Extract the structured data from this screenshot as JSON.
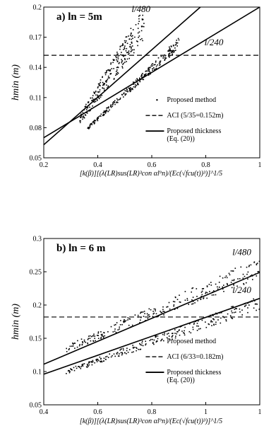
{
  "chart_data": [
    {
      "type": "scatter",
      "panel_label": "a) ln = 5m",
      "ylabel": "hmin (m)",
      "xlabel": "[k(β)][(λ(LR)sus(LR)³con αl⁹n)/(Ec(√fcu(t))³)]^1/5",
      "xlim": [
        0.2,
        1.0
      ],
      "ylim": [
        0.05,
        0.2
      ],
      "xticks": [
        "0.2",
        "0.4",
        "0.6",
        "0.8",
        "1"
      ],
      "yticks": [
        "0.05",
        "0.08",
        "0.11",
        "0.14",
        "0.17",
        "0.2"
      ],
      "annotations": [
        {
          "text": "l/480",
          "x": 0.56,
          "y": 0.195
        },
        {
          "text": "l/240",
          "x": 0.83,
          "y": 0.162
        }
      ],
      "legend": [
        {
          "label": "Proposed method",
          "style": "dots"
        },
        {
          "label": "ACI (5/35=0.152m)",
          "style": "dashed"
        },
        {
          "label": "Proposed thickness",
          "label2": "(Eq. (20))",
          "style": "solid"
        }
      ],
      "aci_line": {
        "y": 0.152
      },
      "proposed_lines": [
        {
          "x": [
            0.2,
            0.78
          ],
          "y": [
            0.063,
            0.2
          ]
        },
        {
          "x": [
            0.2,
            1.0
          ],
          "y": [
            0.07,
            0.2
          ]
        }
      ],
      "scatter_clusters": [
        {
          "x": [
            0.33,
            0.57
          ],
          "y": [
            0.088,
            0.185
          ],
          "spread": 0.012
        },
        {
          "x": [
            0.36,
            0.7
          ],
          "y": [
            0.08,
            0.165
          ],
          "spread": 0.004
        }
      ]
    },
    {
      "type": "scatter",
      "panel_label": "b) ln = 6 m",
      "ylabel": "hmin (m)",
      "xlabel": "[k(β)][(λ(LR)sus(LR)³con αl⁹n)/(Ec(√fcu(t))³)]^1/5",
      "xlim": [
        0.4,
        1.0
      ],
      "ylim": [
        0.05,
        0.3
      ],
      "xticks": [
        "0.4",
        "0.6",
        "0.8",
        "1",
        "1"
      ],
      "yticks": [
        "0.05",
        "0.1",
        "0.15",
        "0.2",
        "0.25",
        "0.3"
      ],
      "annotations": [
        {
          "text": "l/480",
          "x": 0.95,
          "y": 0.275
        },
        {
          "text": "l/240",
          "x": 0.95,
          "y": 0.218
        }
      ],
      "legend": [
        {
          "label": "Proposed method",
          "style": "dots"
        },
        {
          "label": "ACI (6/33=0.182m)",
          "style": "dashed"
        },
        {
          "label": "Proposed thickness",
          "label2": "(Eq. (20))",
          "style": "solid"
        }
      ],
      "aci_line": {
        "y": 0.182
      },
      "proposed_lines": [
        {
          "x": [
            0.4,
            1.2
          ],
          "y": [
            0.111,
            0.295
          ]
        },
        {
          "x": [
            0.4,
            1.2
          ],
          "y": [
            0.096,
            0.248
          ]
        }
      ],
      "scatter_clusters": [
        {
          "x": [
            0.46,
            1.02
          ],
          "y": [
            0.135,
            0.262
          ],
          "spread": 0.012
        },
        {
          "x": [
            0.46,
            1.02
          ],
          "y": [
            0.1,
            0.208
          ],
          "spread": 0.008
        }
      ]
    }
  ]
}
